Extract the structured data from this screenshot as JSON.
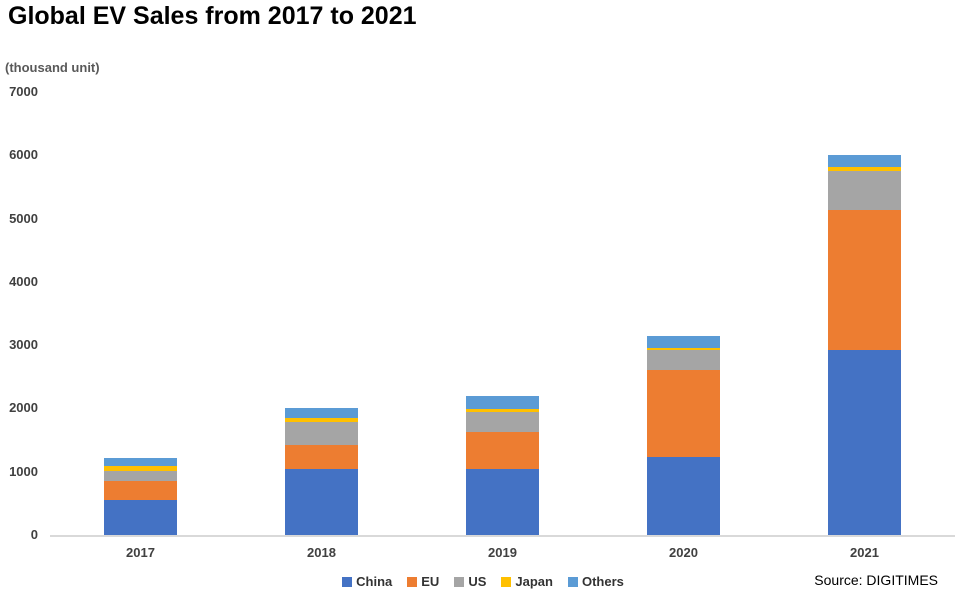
{
  "title": "Global EV Sales from 2017 to 2021",
  "unit_label": "(thousand unit)",
  "source": "Source: DIGITIMES",
  "colors": {
    "axis_line": "#d9d9d9",
    "axis_text": "#404040",
    "title_text": "#000000",
    "unit_text": "#595959",
    "legend_text": "#333333",
    "background": "#ffffff"
  },
  "chart_data": {
    "type": "bar",
    "stacked": true,
    "title": "Global EV Sales from 2017 to 2021",
    "ylabel": "(thousand unit)",
    "xlabel": "",
    "categories": [
      "2017",
      "2018",
      "2019",
      "2020",
      "2021"
    ],
    "series": [
      {
        "name": "China",
        "color": "#4472C4",
        "values": [
          550,
          1040,
          1050,
          1240,
          2920
        ]
      },
      {
        "name": "EU",
        "color": "#ED7D31",
        "values": [
          300,
          390,
          580,
          1370,
          2220
        ]
      },
      {
        "name": "US",
        "color": "#A5A5A5",
        "values": [
          160,
          360,
          310,
          310,
          620
        ]
      },
      {
        "name": "Japan",
        "color": "#FFC000",
        "values": [
          80,
          60,
          45,
          30,
          60
        ]
      },
      {
        "name": "Others",
        "color": "#5B9BD5",
        "values": [
          120,
          150,
          215,
          200,
          180
        ]
      }
    ],
    "totals": [
      1210,
      2000,
      2200,
      3150,
      6000
    ],
    "y_ticks": [
      0,
      1000,
      2000,
      3000,
      4000,
      5000,
      6000,
      7000
    ],
    "ylim": [
      0,
      7000
    ],
    "grid": false,
    "legend_position": "bottom",
    "source": "Source: DIGITIMES"
  }
}
